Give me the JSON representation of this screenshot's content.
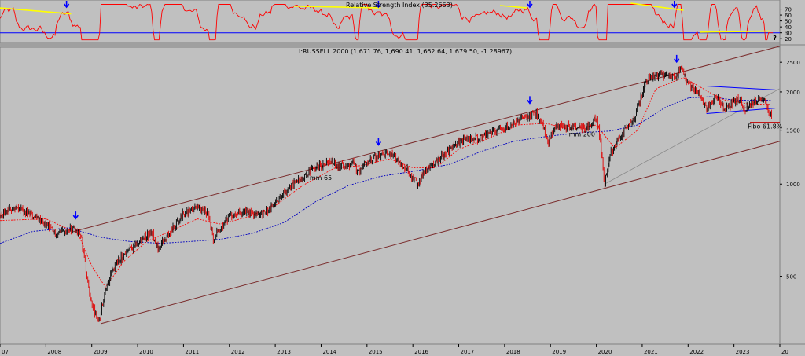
{
  "chart_data": [
    {
      "type": "line",
      "title": "Relative Strength Index (35.2663)",
      "series": [],
      "ylim": [
        0,
        100
      ],
      "y_ticks": [
        "70",
        "60",
        "50",
        "40",
        "30",
        "20"
      ],
      "reference_lines": [
        70,
        30
      ],
      "colors": {
        "rsi": "#ff0000",
        "bands": "#0000ff",
        "divergence": "#ffff00",
        "arrows": "#0000ff"
      },
      "question_mark": "?"
    },
    {
      "type": "candlestick",
      "title": "I:RUSSELL 2000 (1,671.76, 1,690.41, 1,662.64, 1,679.50, -1.28967)",
      "scale": "log",
      "ylim": [
        300,
        2800
      ],
      "y_ticks": [
        "2500",
        "2000",
        "1500",
        "1000",
        "500"
      ],
      "x_ticks": [
        "07",
        "2008",
        "2009",
        "2010",
        "2011",
        "2012",
        "2013",
        "2014",
        "2015",
        "2016",
        "2017",
        "2018",
        "2019",
        "2020",
        "2021",
        "2022",
        "2023",
        "20"
      ],
      "x_range": [
        2007.0,
        2024.0
      ],
      "annotations": {
        "ma65": "mm 65",
        "ma200": "mm 200",
        "fibo": "Fibo 61.8%"
      },
      "series": [
        {
          "name": "mm 65",
          "color": "#ff0000"
        },
        {
          "name": "mm 200",
          "color": "#0000c0"
        }
      ],
      "anchor_points": [
        [
          2007.0,
          790
        ],
        [
          2007.3,
          840
        ],
        [
          2007.6,
          800
        ],
        [
          2007.9,
          760
        ],
        [
          2008.2,
          690
        ],
        [
          2008.5,
          720
        ],
        [
          2008.75,
          700
        ],
        [
          2008.85,
          560
        ],
        [
          2008.95,
          430
        ],
        [
          2009.15,
          350
        ],
        [
          2009.3,
          460
        ],
        [
          2009.5,
          540
        ],
        [
          2009.75,
          600
        ],
        [
          2010.0,
          640
        ],
        [
          2010.3,
          700
        ],
        [
          2010.45,
          620
        ],
        [
          2010.7,
          690
        ],
        [
          2010.95,
          790
        ],
        [
          2011.3,
          840
        ],
        [
          2011.55,
          800
        ],
        [
          2011.65,
          660
        ],
        [
          2011.8,
          720
        ],
        [
          2012.0,
          780
        ],
        [
          2012.3,
          820
        ],
        [
          2012.6,
          790
        ],
        [
          2012.9,
          830
        ],
        [
          2013.2,
          940
        ],
        [
          2013.5,
          1030
        ],
        [
          2013.9,
          1140
        ],
        [
          2014.2,
          1190
        ],
        [
          2014.4,
          1140
        ],
        [
          2014.7,
          1170
        ],
        [
          2014.8,
          1090
        ],
        [
          2015.0,
          1190
        ],
        [
          2015.3,
          1240
        ],
        [
          2015.5,
          1260
        ],
        [
          2015.65,
          1200
        ],
        [
          2015.8,
          1150
        ],
        [
          2016.1,
          1000
        ],
        [
          2016.3,
          1120
        ],
        [
          2016.6,
          1220
        ],
        [
          2016.85,
          1320
        ],
        [
          2017.0,
          1380
        ],
        [
          2017.5,
          1420
        ],
        [
          2017.9,
          1520
        ],
        [
          2018.2,
          1560
        ],
        [
          2018.5,
          1680
        ],
        [
          2018.7,
          1700
        ],
        [
          2018.85,
          1520
        ],
        [
          2018.95,
          1360
        ],
        [
          2019.1,
          1520
        ],
        [
          2019.5,
          1560
        ],
        [
          2019.75,
          1520
        ],
        [
          2020.0,
          1640
        ],
        [
          2020.05,
          1540
        ],
        [
          2020.18,
          1000
        ],
        [
          2020.3,
          1260
        ],
        [
          2020.6,
          1480
        ],
        [
          2020.85,
          1680
        ],
        [
          2021.1,
          2220
        ],
        [
          2021.4,
          2280
        ],
        [
          2021.7,
          2240
        ],
        [
          2021.85,
          2420
        ],
        [
          2022.0,
          2120
        ],
        [
          2022.2,
          2000
        ],
        [
          2022.4,
          1760
        ],
        [
          2022.6,
          1930
        ],
        [
          2022.8,
          1760
        ],
        [
          2023.1,
          1900
        ],
        [
          2023.25,
          1760
        ],
        [
          2023.5,
          1880
        ],
        [
          2023.65,
          1880
        ],
        [
          2023.75,
          1720
        ],
        [
          2023.82,
          1690
        ]
      ],
      "ma65_points": [
        [
          2007.0,
          760
        ],
        [
          2008.0,
          770
        ],
        [
          2008.7,
          690
        ],
        [
          2009.0,
          540
        ],
        [
          2009.3,
          460
        ],
        [
          2009.7,
          560
        ],
        [
          2010.2,
          650
        ],
        [
          2010.7,
          700
        ],
        [
          2011.3,
          770
        ],
        [
          2011.8,
          740
        ],
        [
          2012.4,
          780
        ],
        [
          2013.0,
          850
        ],
        [
          2013.6,
          990
        ],
        [
          2014.3,
          1130
        ],
        [
          2014.9,
          1150
        ],
        [
          2015.5,
          1210
        ],
        [
          2016.0,
          1130
        ],
        [
          2016.5,
          1130
        ],
        [
          2017.0,
          1300
        ],
        [
          2017.6,
          1400
        ],
        [
          2018.3,
          1560
        ],
        [
          2018.9,
          1580
        ],
        [
          2019.4,
          1510
        ],
        [
          2020.0,
          1560
        ],
        [
          2020.4,
          1310
        ],
        [
          2020.9,
          1500
        ],
        [
          2021.3,
          2050
        ],
        [
          2021.9,
          2230
        ],
        [
          2022.5,
          1980
        ],
        [
          2022.8,
          1880
        ],
        [
          2023.3,
          1830
        ],
        [
          2023.8,
          1820
        ]
      ],
      "ma200_points": [
        [
          2007.0,
          640
        ],
        [
          2007.7,
          700
        ],
        [
          2008.5,
          720
        ],
        [
          2009.2,
          670
        ],
        [
          2009.8,
          650
        ],
        [
          2010.5,
          640
        ],
        [
          2011.2,
          650
        ],
        [
          2011.8,
          660
        ],
        [
          2012.5,
          690
        ],
        [
          2013.2,
          750
        ],
        [
          2013.9,
          880
        ],
        [
          2014.6,
          990
        ],
        [
          2015.3,
          1060
        ],
        [
          2016.0,
          1100
        ],
        [
          2016.8,
          1160
        ],
        [
          2017.5,
          1280
        ],
        [
          2018.2,
          1380
        ],
        [
          2018.9,
          1430
        ],
        [
          2019.6,
          1470
        ],
        [
          2020.3,
          1490
        ],
        [
          2020.9,
          1560
        ],
        [
          2021.5,
          1780
        ],
        [
          2022.0,
          1910
        ],
        [
          2022.5,
          1930
        ],
        [
          2023.0,
          1880
        ],
        [
          2023.8,
          1880
        ]
      ],
      "channel_upper": [
        [
          2008.6,
          700
        ],
        [
          2024.0,
          2820
        ]
      ],
      "channel_lower": [
        [
          2009.2,
          350
        ],
        [
          2024.0,
          1380
        ]
      ],
      "support_line": [
        [
          2020.18,
          1000
        ],
        [
          2024.0,
          2050
        ]
      ],
      "triangle_upper": [
        [
          2022.4,
          2090
        ],
        [
          2023.9,
          2030
        ]
      ],
      "triangle_lower": [
        [
          2022.4,
          1700
        ],
        [
          2023.9,
          1770
        ]
      ],
      "fibo_level": 1590,
      "fibo_range": [
        2023.35,
        2024.0
      ],
      "arrow_marks": [
        2008.65,
        2015.25,
        2018.55,
        2021.75
      ]
    }
  ]
}
